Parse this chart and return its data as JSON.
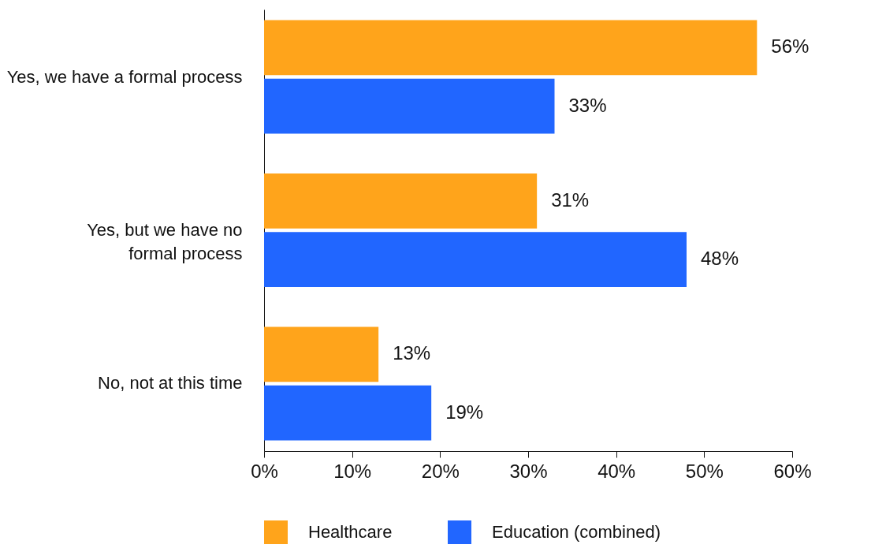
{
  "chart_data": {
    "type": "bar",
    "orientation": "horizontal",
    "categories": [
      "Yes, we have a formal process",
      "Yes, but we have no formal process",
      "No, not at this time"
    ],
    "series": [
      {
        "name": "Healthcare",
        "color": "#ffa41b",
        "values": [
          56,
          31,
          13
        ],
        "value_labels": [
          "56%",
          "31%",
          "13%"
        ]
      },
      {
        "name": "Education (combined)",
        "color": "#2166ff",
        "values": [
          33,
          48,
          19
        ],
        "value_labels": [
          "33%",
          "48%",
          "19%"
        ]
      }
    ],
    "xlim": [
      0,
      60
    ],
    "xticks": [
      {
        "value": 0,
        "label": "0%"
      },
      {
        "value": 10,
        "label": "10%"
      },
      {
        "value": 20,
        "label": "20%"
      },
      {
        "value": 30,
        "label": "30%"
      },
      {
        "value": 40,
        "label": "40%"
      },
      {
        "value": 50,
        "label": "50%"
      },
      {
        "value": 60,
        "label": "60%"
      }
    ],
    "grid": false,
    "legend": "bottom"
  }
}
